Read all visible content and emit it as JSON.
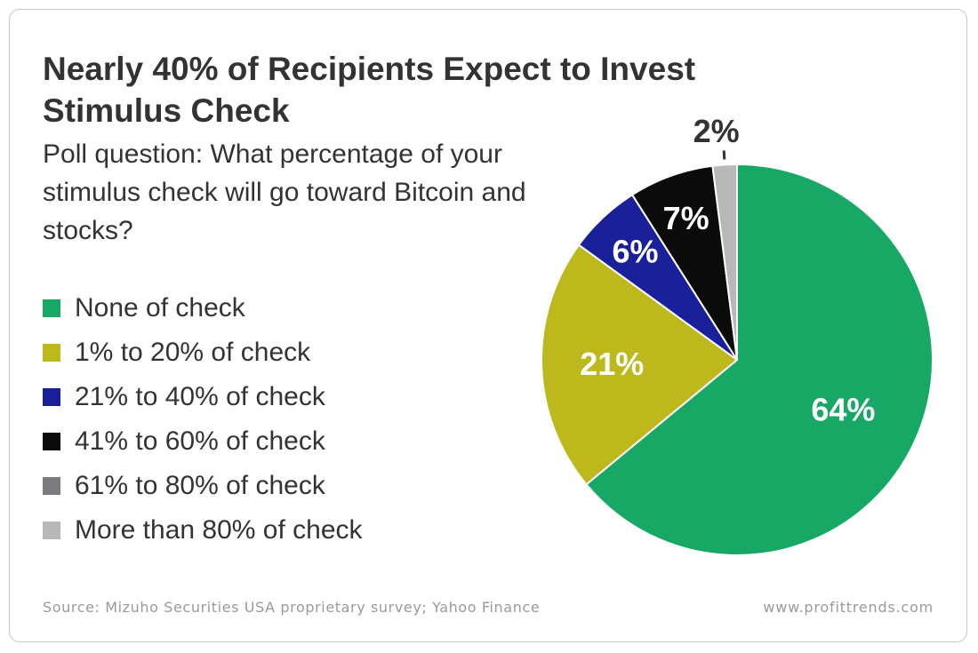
{
  "title": "Nearly 40% of Recipients Expect to Invest Stimulus Check",
  "subtitle": "Poll question: What percentage of your stimulus check will go toward Bitcoin and stocks?",
  "footer": {
    "source": "Source: Mizuho Securities USA proprietary survey; Yahoo Finance",
    "site": "www.profittrends.com"
  },
  "chart_data": {
    "type": "pie",
    "title": "Nearly 40% of Recipients Expect to Invest Stimulus Check",
    "subtitle": "Poll question: What percentage of your stimulus check will go toward Bitcoin and stocks?",
    "legend_position": "left",
    "slices": [
      {
        "label": "None of check",
        "value": 64,
        "display": "64%",
        "color": "#17a865",
        "text_color": "#ffffff"
      },
      {
        "label": "1% to 20% of check",
        "value": 21,
        "display": "21%",
        "color": "#bdb91c",
        "text_color": "#ffffff"
      },
      {
        "label": "21% to 40% of check",
        "value": 6,
        "display": "6%",
        "color": "#1a1f9a",
        "text_color": "#ffffff"
      },
      {
        "label": "41% to 60% of check",
        "value": 7,
        "display": "7%",
        "color": "#0b0b0b",
        "text_color": "#ffffff"
      },
      {
        "label": "61% to 80% of check",
        "value": 0,
        "display": "",
        "color": "#7c7c7e",
        "text_color": "#ffffff"
      },
      {
        "label": "More than 80% of check",
        "value": 2,
        "display": "2%",
        "color": "#b8b8b8",
        "text_color": "#333333"
      }
    ]
  }
}
